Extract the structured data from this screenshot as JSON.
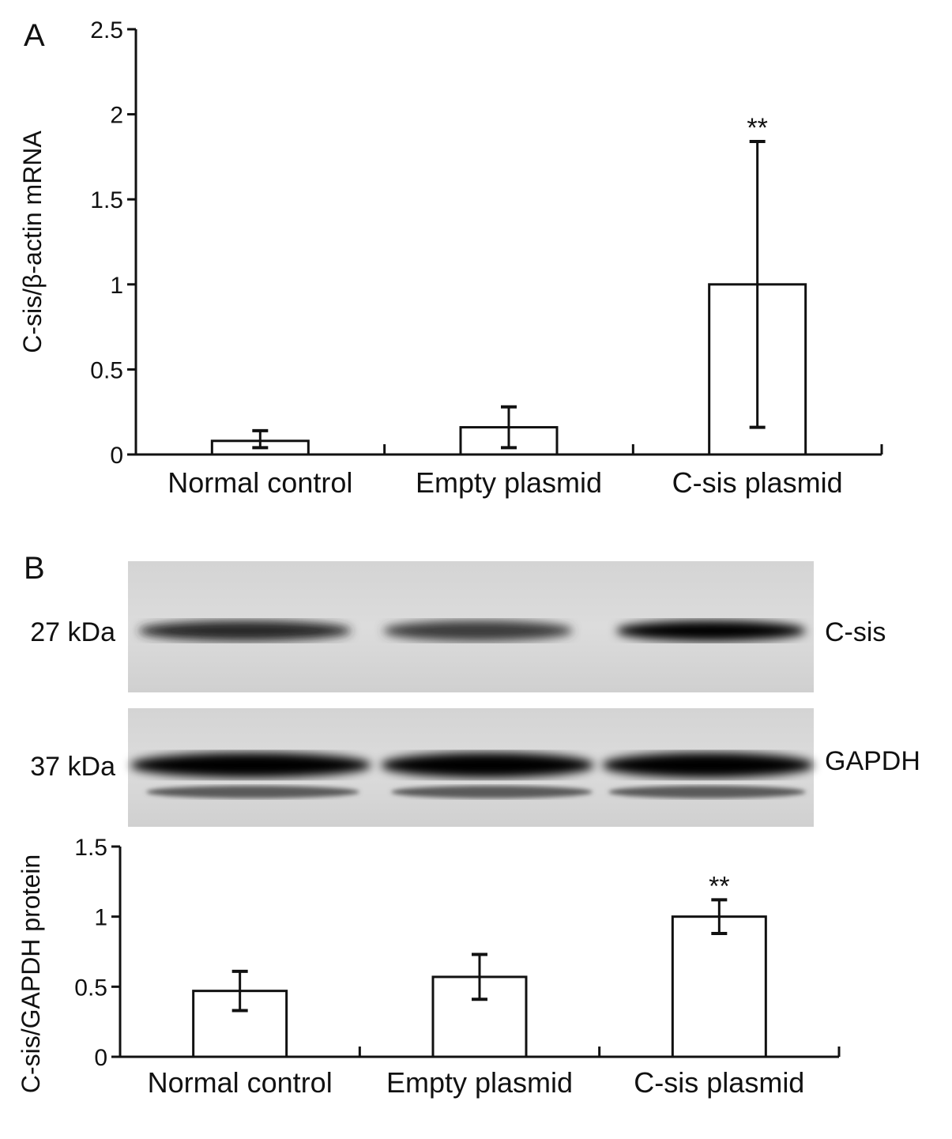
{
  "panel_a": {
    "letter": "A",
    "chart_data": {
      "type": "bar",
      "ylabel": "C-sis/β-actin mRNA",
      "xlabel": "",
      "ylim": [
        0,
        2.5
      ],
      "yticks": [
        "0",
        "0.5",
        "1",
        "1.5",
        "2",
        "2.5"
      ],
      "categories": [
        "Normal control",
        "Empty plasmid",
        "C-sis plasmid"
      ],
      "values": [
        0.08,
        0.16,
        1.0
      ],
      "error_low": [
        0.04,
        0.04,
        0.16
      ],
      "error_high": [
        0.14,
        0.28,
        1.84
      ],
      "annotations": [
        "",
        "",
        "**"
      ],
      "grid": false,
      "legend": "none"
    }
  },
  "panel_b": {
    "letter": "B",
    "blot": {
      "rows": [
        {
          "marker": "27 kDa",
          "protein": "C-sis",
          "band_intensity": [
            0.8,
            0.7,
            1.0
          ]
        },
        {
          "marker": "37 kDa",
          "protein": "GAPDH",
          "band_intensity": [
            1.0,
            1.0,
            1.0
          ]
        }
      ]
    },
    "chart_data": {
      "type": "bar",
      "ylabel": "C-sis/GAPDH protein",
      "xlabel": "",
      "ylim": [
        0,
        1.5
      ],
      "yticks": [
        "0",
        "0.5",
        "1",
        "1.5"
      ],
      "categories": [
        "Normal control",
        "Empty plasmid",
        "C-sis plasmid"
      ],
      "values": [
        0.47,
        0.57,
        1.0
      ],
      "error_low": [
        0.33,
        0.41,
        0.88
      ],
      "error_high": [
        0.61,
        0.73,
        1.12
      ],
      "annotations": [
        "",
        "",
        "**"
      ],
      "grid": false,
      "legend": "none"
    }
  }
}
